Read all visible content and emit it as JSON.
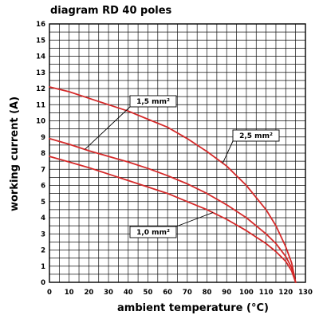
{
  "chart_data": {
    "type": "line",
    "title": "diagram RD 40 poles",
    "xlabel": "ambient temperature (°C)",
    "ylabel": "working current (A)",
    "xlim": [
      0,
      130
    ],
    "ylim": [
      0,
      16
    ],
    "xticks": [
      0,
      10,
      20,
      30,
      40,
      50,
      60,
      70,
      80,
      90,
      100,
      110,
      120,
      130
    ],
    "yticks": [
      0,
      1,
      2,
      3,
      4,
      5,
      6,
      7,
      8,
      9,
      10,
      11,
      12,
      13,
      14,
      15,
      16
    ],
    "grid": true,
    "line_color": "#d42a2a",
    "series": [
      {
        "name": "2,5 mm²",
        "x": [
          0,
          10,
          20,
          30,
          40,
          50,
          60,
          70,
          80,
          90,
          100,
          110,
          115,
          120,
          123,
          125
        ],
        "y": [
          12.1,
          11.8,
          11.4,
          11.0,
          10.6,
          10.1,
          9.6,
          8.9,
          8.1,
          7.2,
          6.0,
          4.5,
          3.5,
          2.2,
          1.2,
          0.0
        ]
      },
      {
        "name": "1,5 mm²",
        "x": [
          0,
          10,
          20,
          30,
          40,
          50,
          60,
          70,
          80,
          90,
          100,
          110,
          115,
          120,
          123,
          125
        ],
        "y": [
          8.9,
          8.55,
          8.15,
          7.8,
          7.45,
          7.05,
          6.6,
          6.1,
          5.5,
          4.8,
          4.0,
          3.0,
          2.4,
          1.6,
          0.9,
          0.0
        ]
      },
      {
        "name": "1,0 mm²",
        "x": [
          0,
          10,
          20,
          30,
          40,
          50,
          60,
          70,
          80,
          90,
          100,
          110,
          115,
          120,
          123,
          125
        ],
        "y": [
          7.8,
          7.45,
          7.1,
          6.7,
          6.3,
          5.9,
          5.5,
          5.0,
          4.5,
          3.9,
          3.2,
          2.4,
          1.9,
          1.3,
          0.7,
          0.0
        ]
      }
    ],
    "labels": [
      {
        "text": "1,5 mm²",
        "series": "1,5 mm²"
      },
      {
        "text": "2,5 mm²",
        "series": "2,5 mm²"
      },
      {
        "text": "1,0 mm²",
        "series": "1,0 mm²"
      }
    ]
  }
}
